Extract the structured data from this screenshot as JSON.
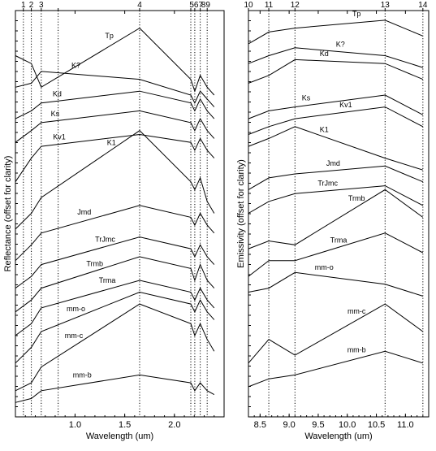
{
  "chart_data": [
    {
      "type": "line",
      "title": "",
      "xlabel": "Wavelength (um)",
      "ylabel": "Reflectance (offset for clarity)",
      "xlim": [
        0.4,
        2.5
      ],
      "x_ticks": [
        1.0,
        1.5,
        2.0
      ],
      "x_tick_labels": [
        "1.0",
        "1.5",
        "2.0"
      ],
      "bands": [
        {
          "label": "1",
          "x": 0.48
        },
        {
          "label": "2",
          "x": 0.56
        },
        {
          "label": "3",
          "x": 0.66
        },
        {
          "label": "4",
          "x": 0.83
        },
        {
          "label": "5",
          "x": 1.65
        },
        {
          "label": "6",
          "x": 2.165
        },
        {
          "label": "7",
          "x": 2.205
        },
        {
          "label": "8",
          "x": 2.26
        },
        {
          "label": "9",
          "x": 2.33
        }
      ],
      "band_labels_shown": [
        "1",
        "2",
        "3",
        "4",
        "5",
        "6",
        "7",
        "8",
        "9"
      ],
      "band_header": [
        "1",
        "2",
        "3",
        "4",
        "567",
        "89"
      ],
      "x": [
        0.4,
        0.56,
        0.66,
        1.65,
        2.165,
        2.205,
        2.26,
        2.33,
        2.4
      ],
      "series": [
        {
          "name": "Tp",
          "values": [
            0.9,
            0.88,
            0.82,
            0.97,
            0.84,
            0.81,
            0.85,
            0.82,
            0.8
          ]
        },
        {
          "name": "K?",
          "values": [
            0.82,
            0.83,
            0.86,
            0.84,
            0.8,
            0.78,
            0.81,
            0.79,
            0.77
          ]
        },
        {
          "name": "Kd",
          "values": [
            0.74,
            0.76,
            0.78,
            0.81,
            0.78,
            0.76,
            0.79,
            0.76,
            0.74
          ]
        },
        {
          "name": "Ks",
          "values": [
            0.68,
            0.71,
            0.73,
            0.76,
            0.73,
            0.71,
            0.74,
            0.71,
            0.69
          ]
        },
        {
          "name": "Kv1",
          "values": [
            0.58,
            0.64,
            0.67,
            0.7,
            0.68,
            0.66,
            0.69,
            0.66,
            0.64
          ]
        },
        {
          "name": "K1",
          "values": [
            0.46,
            0.5,
            0.54,
            0.71,
            0.58,
            0.56,
            0.59,
            0.53,
            0.5
          ]
        },
        {
          "name": "Jmd",
          "values": [
            0.38,
            0.42,
            0.45,
            0.52,
            0.49,
            0.47,
            0.5,
            0.47,
            0.45
          ]
        },
        {
          "name": "TrJmc",
          "values": [
            0.31,
            0.34,
            0.37,
            0.44,
            0.41,
            0.39,
            0.42,
            0.39,
            0.37
          ]
        },
        {
          "name": "Trmb",
          "values": [
            0.25,
            0.28,
            0.31,
            0.39,
            0.36,
            0.33,
            0.37,
            0.33,
            0.31
          ]
        },
        {
          "name": "Trma",
          "values": [
            0.19,
            0.22,
            0.26,
            0.33,
            0.3,
            0.28,
            0.31,
            0.28,
            0.26
          ]
        },
        {
          "name": "mm-o",
          "values": [
            0.12,
            0.16,
            0.2,
            0.3,
            0.27,
            0.25,
            0.28,
            0.25,
            0.23
          ]
        },
        {
          "name": "mm-c",
          "values": [
            0.05,
            0.07,
            0.11,
            0.27,
            0.22,
            0.19,
            0.22,
            0.18,
            0.15
          ]
        },
        {
          "name": "mm-b",
          "values": [
            0.02,
            0.03,
            0.05,
            0.09,
            0.07,
            0.05,
            0.07,
            0.05,
            0.04
          ]
        }
      ]
    },
    {
      "type": "line",
      "title": "",
      "xlabel": "Wavelength (um)",
      "ylabel": "Emissivity (offset for clarity)",
      "xlim": [
        8.3,
        11.4
      ],
      "x_ticks": [
        8.5,
        9.0,
        9.5,
        10.0,
        10.5,
        11.0
      ],
      "x_tick_labels": [
        "8.5",
        "9.0",
        "9.5",
        "10.0",
        "10.5",
        "11.0"
      ],
      "bands": [
        {
          "label": "10",
          "x": 8.3
        },
        {
          "label": "11",
          "x": 8.65
        },
        {
          "label": "12",
          "x": 9.1
        },
        {
          "label": "13",
          "x": 10.65
        },
        {
          "label": "14",
          "x": 11.3
        }
      ],
      "x": [
        8.3,
        8.65,
        9.1,
        10.65,
        11.3
      ],
      "series": [
        {
          "name": "Tp",
          "values": [
            0.93,
            0.96,
            0.97,
            0.99,
            0.95
          ]
        },
        {
          "name": "K?",
          "values": [
            0.88,
            0.9,
            0.92,
            0.9,
            0.87
          ]
        },
        {
          "name": "Kd",
          "values": [
            0.83,
            0.85,
            0.89,
            0.88,
            0.84
          ]
        },
        {
          "name": "Ks",
          "values": [
            0.74,
            0.76,
            0.77,
            0.8,
            0.75
          ]
        },
        {
          "name": "Kv1",
          "values": [
            0.7,
            0.72,
            0.74,
            0.77,
            0.72
          ]
        },
        {
          "name": "K1",
          "values": [
            0.67,
            0.69,
            0.72,
            0.64,
            0.61
          ]
        },
        {
          "name": "Jmd",
          "values": [
            0.56,
            0.59,
            0.6,
            0.62,
            0.58
          ]
        },
        {
          "name": "TrJmc",
          "values": [
            0.5,
            0.53,
            0.55,
            0.57,
            0.52
          ]
        },
        {
          "name": "Trmb",
          "values": [
            0.41,
            0.43,
            0.42,
            0.56,
            0.49
          ]
        },
        {
          "name": "Trma",
          "values": [
            0.34,
            0.38,
            0.38,
            0.45,
            0.4
          ]
        },
        {
          "name": "mm-o",
          "values": [
            0.3,
            0.31,
            0.35,
            0.32,
            0.29
          ]
        },
        {
          "name": "mm-c",
          "values": [
            0.12,
            0.18,
            0.14,
            0.27,
            0.2
          ]
        },
        {
          "name": "mm-b",
          "values": [
            0.06,
            0.08,
            0.09,
            0.15,
            0.12
          ]
        }
      ]
    }
  ]
}
